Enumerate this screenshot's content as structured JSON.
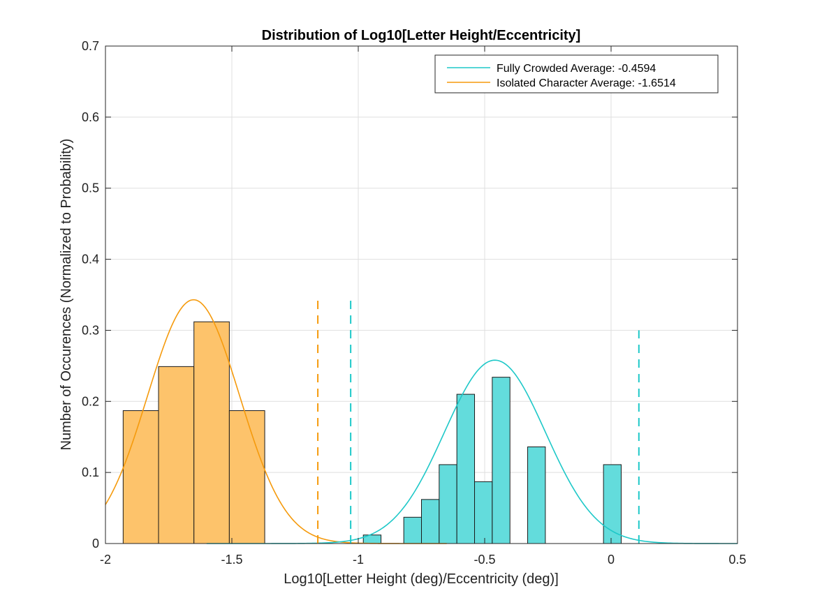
{
  "chart_data": {
    "type": "bar",
    "title": "Distribution of Log10[Letter Height/Eccentricity]",
    "xlabel": "Log10[Letter Height (deg)/Eccentricity (deg)]",
    "ylabel": "Number of Occurences (Normalized to Probability)",
    "xlim": [
      -2,
      0.5
    ],
    "ylim": [
      0,
      0.7
    ],
    "xticks": [
      -2,
      -1.5,
      -1,
      -0.5,
      0,
      0.5
    ],
    "xtick_labels": [
      "-2",
      "-1.5",
      "-1",
      "-0.5",
      "0",
      "0.5"
    ],
    "yticks": [
      0,
      0.1,
      0.2,
      0.3,
      0.4,
      0.5,
      0.6,
      0.7
    ],
    "ytick_labels": [
      "0",
      "0.1",
      "0.2",
      "0.3",
      "0.4",
      "0.5",
      "0.6",
      "0.7"
    ],
    "grid": true,
    "legend_position": "top-right",
    "legend": [
      {
        "label": "Fully Crowded Average: -0.4594",
        "color": "#1ec8c8"
      },
      {
        "label": "Isolated Character Average: -1.6514",
        "color": "#f59a0c"
      }
    ],
    "histograms": [
      {
        "name": "Isolated Character",
        "fill": "#fdc36b",
        "edges": [
          -1.93,
          -1.79,
          -1.65,
          -1.51,
          -1.37
        ],
        "values": [
          0.187,
          0.249,
          0.312,
          0.187
        ]
      },
      {
        "name": "Fully Crowded",
        "fill": "#63dcdc",
        "bins": [
          {
            "x0": -0.98,
            "x1": -0.91,
            "value": 0.012
          },
          {
            "x0": -0.82,
            "x1": -0.75,
            "value": 0.037
          },
          {
            "x0": -0.75,
            "x1": -0.68,
            "value": 0.062
          },
          {
            "x0": -0.68,
            "x1": -0.61,
            "value": 0.111
          },
          {
            "x0": -0.61,
            "x1": -0.54,
            "value": 0.21
          },
          {
            "x0": -0.54,
            "x1": -0.47,
            "value": 0.087
          },
          {
            "x0": -0.47,
            "x1": -0.4,
            "value": 0.234
          },
          {
            "x0": -0.33,
            "x1": -0.26,
            "value": 0.136
          },
          {
            "x0": -0.03,
            "x1": 0.04,
            "value": 0.111
          }
        ]
      }
    ],
    "curves": [
      {
        "name": "Isolated Character Average: -1.6514",
        "color": "#f59a0c",
        "mean": -1.6514,
        "peak": 0.343,
        "sigma": 0.182,
        "x_range": [
          -2.0,
          -0.65
        ]
      },
      {
        "name": "Fully Crowded Average: -0.4594",
        "color": "#1ec8c8",
        "mean": -0.4594,
        "peak": 0.258,
        "sigma": 0.2,
        "x_range": [
          -1.6,
          0.5
        ]
      }
    ],
    "dashed_lines": [
      {
        "x": -1.16,
        "y_top": 0.35,
        "color": "#f59a0c"
      },
      {
        "x": -1.03,
        "y_top": 0.35,
        "color": "#1ec8c8"
      },
      {
        "x": 0.11,
        "y_top": 0.3,
        "color": "#1ec8c8"
      }
    ]
  }
}
